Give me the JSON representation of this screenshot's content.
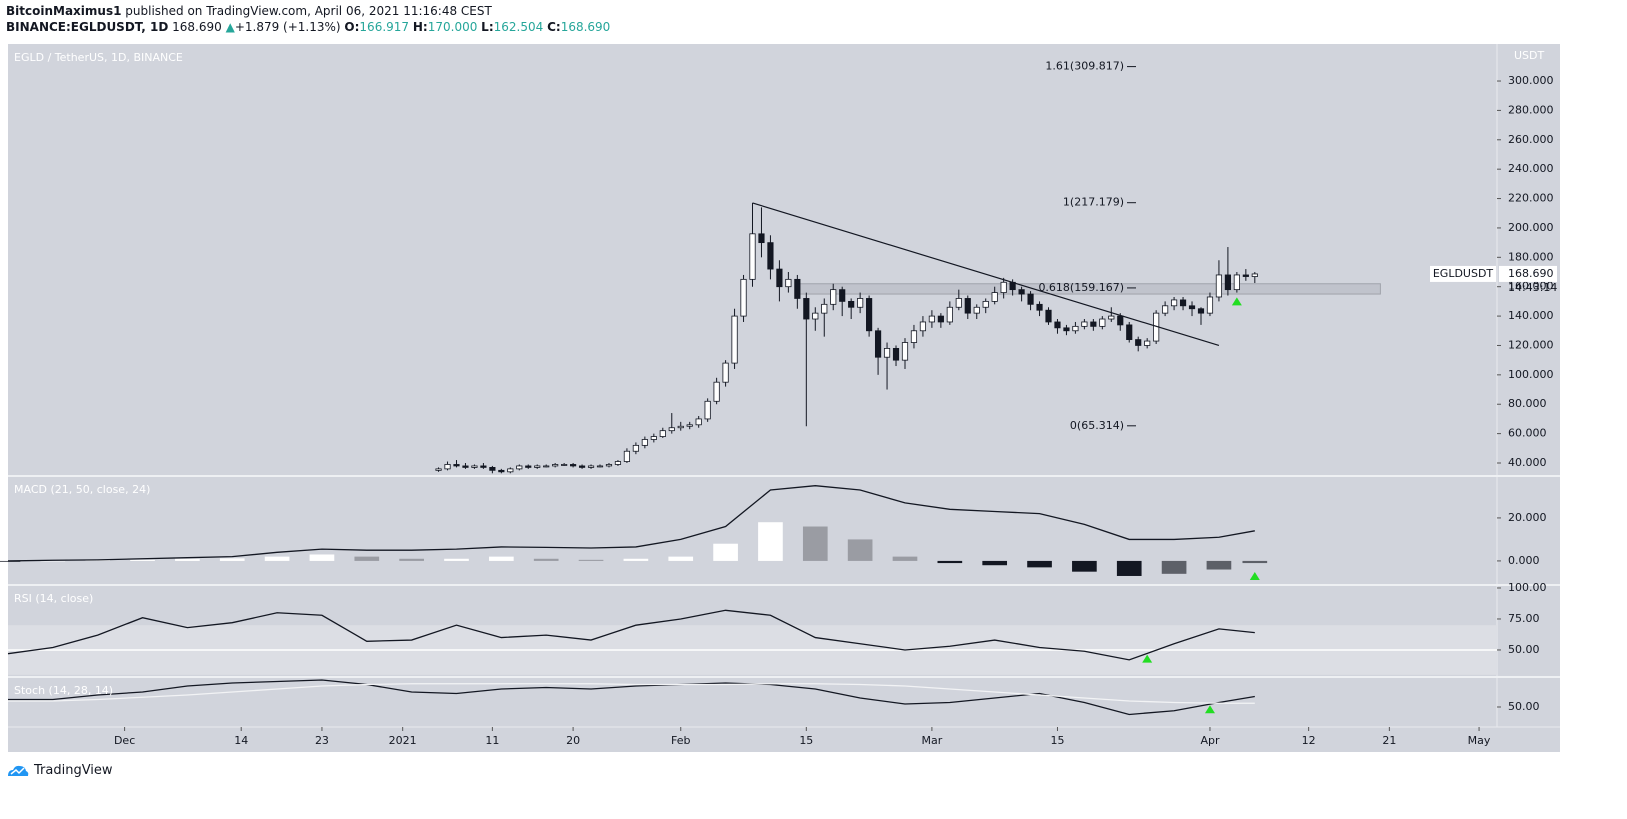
{
  "header": {
    "author": "BitcoinMaximus1",
    "published": "published on TradingView.com, April 06, 2021 11:16:48 CEST",
    "symbol": "BINANCE:EGLDUSDT, 1D",
    "last": "168.690",
    "arrow": "▲",
    "change": "+1.879 (+1.13%)",
    "o_label": "O:",
    "o": "166.917",
    "h_label": "H:",
    "h": "170.000",
    "l_label": "L:",
    "l": "162.504",
    "c_label": "C:",
    "c": "168.690"
  },
  "chart_data": [
    {
      "type": "candlestick",
      "title": "EGLD / TetherUS, 1D, BINANCE",
      "unit": "USDT",
      "symbol": "EGLDUSDT",
      "price_tag": {
        "value": 168.69,
        "label": "168.690"
      },
      "countdown": "14:43:14",
      "up_color": "#ffffff",
      "down_color": "#131722",
      "xlim": [
        "2020-11-18",
        "2021-05-03"
      ],
      "ylim": [
        31.15,
        325.2
      ],
      "yticks": [
        {
          "value": 40,
          "label": "40.000"
        },
        {
          "value": 60,
          "label": "60.000"
        },
        {
          "value": 80,
          "label": "80.000"
        },
        {
          "value": 100,
          "label": "100.000"
        },
        {
          "value": 120,
          "label": "120.000"
        },
        {
          "value": 140,
          "label": "140.000"
        },
        {
          "value": 160,
          "label": "160.000"
        },
        {
          "value": 180,
          "label": "180.000"
        },
        {
          "value": 200,
          "label": "200.000"
        },
        {
          "value": 220,
          "label": "220.000"
        },
        {
          "value": 240,
          "label": "240.000"
        },
        {
          "value": 260,
          "label": "260.000"
        },
        {
          "value": 280,
          "label": "280.000"
        },
        {
          "value": 300,
          "label": "300.000"
        }
      ],
      "x": [
        "2021-01-05",
        "2021-01-06",
        "2021-01-07",
        "2021-01-08",
        "2021-01-09",
        "2021-01-10",
        "2021-01-11",
        "2021-01-12",
        "2021-01-13",
        "2021-01-14",
        "2021-01-15",
        "2021-01-16",
        "2021-01-17",
        "2021-01-18",
        "2021-01-19",
        "2021-01-20",
        "2021-01-21",
        "2021-01-22",
        "2021-01-23",
        "2021-01-24",
        "2021-01-25",
        "2021-01-26",
        "2021-01-27",
        "2021-01-28",
        "2021-01-29",
        "2021-01-30",
        "2021-01-31",
        "2021-02-01",
        "2021-02-02",
        "2021-02-03",
        "2021-02-04",
        "2021-02-05",
        "2021-02-06",
        "2021-02-07",
        "2021-02-08",
        "2021-02-09",
        "2021-02-10",
        "2021-02-11",
        "2021-02-12",
        "2021-02-13",
        "2021-02-14",
        "2021-02-15",
        "2021-02-16",
        "2021-02-17",
        "2021-02-18",
        "2021-02-19",
        "2021-02-20",
        "2021-02-21",
        "2021-02-22",
        "2021-02-23",
        "2021-02-24",
        "2021-02-25",
        "2021-02-26",
        "2021-02-27",
        "2021-02-28",
        "2021-03-01",
        "2021-03-02",
        "2021-03-03",
        "2021-03-04",
        "2021-03-05",
        "2021-03-06",
        "2021-03-07",
        "2021-03-08",
        "2021-03-09",
        "2021-03-10",
        "2021-03-11",
        "2021-03-12",
        "2021-03-13",
        "2021-03-14",
        "2021-03-15",
        "2021-03-16",
        "2021-03-17",
        "2021-03-18",
        "2021-03-19",
        "2021-03-20",
        "2021-03-21",
        "2021-03-22",
        "2021-03-23",
        "2021-03-24",
        "2021-03-25",
        "2021-03-26",
        "2021-03-27",
        "2021-03-28",
        "2021-03-29",
        "2021-03-30",
        "2021-03-31",
        "2021-04-01",
        "2021-04-02",
        "2021-04-03",
        "2021-04-04",
        "2021-04-05",
        "2021-04-06"
      ],
      "values": [
        [
          35,
          37,
          34,
          36
        ],
        [
          36,
          41,
          35,
          39
        ],
        [
          39,
          42,
          37,
          38
        ],
        [
          38,
          40,
          36,
          37
        ],
        [
          37,
          39,
          36,
          38
        ],
        [
          38,
          40,
          36,
          37
        ],
        [
          37,
          38,
          33,
          35
        ],
        [
          35,
          36,
          33,
          34
        ],
        [
          34,
          37,
          33,
          36
        ],
        [
          36,
          39,
          35,
          38
        ],
        [
          38,
          39,
          36,
          37
        ],
        [
          37,
          39,
          36,
          38
        ],
        [
          38,
          39,
          37,
          38
        ],
        [
          38,
          40,
          37,
          39
        ],
        [
          39,
          40,
          38,
          39
        ],
        [
          39,
          40,
          37,
          38
        ],
        [
          38,
          39,
          36,
          37
        ],
        [
          37,
          39,
          36,
          38
        ],
        [
          38,
          39,
          37,
          38
        ],
        [
          38,
          40,
          37,
          39
        ],
        [
          39,
          42,
          38,
          41
        ],
        [
          41,
          50,
          40,
          48
        ],
        [
          48,
          54,
          46,
          52
        ],
        [
          52,
          58,
          50,
          56
        ],
        [
          56,
          60,
          54,
          58
        ],
        [
          58,
          64,
          57,
          62
        ],
        [
          62,
          74,
          60,
          64
        ],
        [
          64,
          68,
          62,
          65
        ],
        [
          65,
          68,
          63,
          66
        ],
        [
          66,
          72,
          64,
          70
        ],
        [
          70,
          84,
          68,
          82
        ],
        [
          82,
          98,
          80,
          95
        ],
        [
          95,
          110,
          92,
          108
        ],
        [
          108,
          145,
          104,
          140
        ],
        [
          140,
          168,
          136,
          165
        ],
        [
          165,
          217,
          160,
          196
        ],
        [
          196,
          214,
          180,
          190
        ],
        [
          190,
          195,
          165,
          172
        ],
        [
          172,
          178,
          150,
          160
        ],
        [
          160,
          170,
          156,
          165
        ],
        [
          165,
          168,
          145,
          152
        ],
        [
          152,
          156,
          65,
          138
        ],
        [
          138,
          146,
          130,
          142
        ],
        [
          142,
          152,
          126,
          148
        ],
        [
          148,
          162,
          144,
          158
        ],
        [
          158,
          160,
          140,
          150
        ],
        [
          150,
          152,
          138,
          146
        ],
        [
          146,
          156,
          142,
          152
        ],
        [
          152,
          154,
          126,
          130
        ],
        [
          130,
          132,
          100,
          112
        ],
        [
          112,
          122,
          90,
          118
        ],
        [
          118,
          120,
          106,
          110
        ],
        [
          110,
          125,
          104,
          122
        ],
        [
          122,
          134,
          118,
          130
        ],
        [
          130,
          140,
          126,
          136
        ],
        [
          136,
          144,
          132,
          140
        ],
        [
          140,
          142,
          132,
          136
        ],
        [
          136,
          150,
          134,
          146
        ],
        [
          146,
          158,
          144,
          152
        ],
        [
          152,
          154,
          138,
          142
        ],
        [
          142,
          148,
          138,
          146
        ],
        [
          146,
          152,
          142,
          150
        ],
        [
          150,
          160,
          148,
          156
        ],
        [
          156,
          166,
          152,
          163
        ],
        [
          163,
          165,
          154,
          158
        ],
        [
          158,
          160,
          150,
          155
        ],
        [
          155,
          157,
          144,
          148
        ],
        [
          148,
          150,
          140,
          144
        ],
        [
          144,
          146,
          134,
          136
        ],
        [
          136,
          138,
          128,
          132
        ],
        [
          132,
          134,
          127,
          130
        ],
        [
          130,
          136,
          128,
          133
        ],
        [
          133,
          138,
          131,
          136
        ],
        [
          136,
          138,
          130,
          133
        ],
        [
          133,
          140,
          131,
          138
        ],
        [
          138,
          146,
          136,
          140
        ],
        [
          140,
          142,
          130,
          134
        ],
        [
          134,
          136,
          122,
          124
        ],
        [
          124,
          126,
          116,
          120
        ],
        [
          120,
          125,
          118,
          123
        ],
        [
          123,
          144,
          121,
          142
        ],
        [
          142,
          150,
          140,
          147
        ],
        [
          147,
          153,
          144,
          151
        ],
        [
          151,
          153,
          144,
          147
        ],
        [
          147,
          150,
          140,
          145
        ],
        [
          145,
          146,
          134,
          142
        ],
        [
          142,
          156,
          140,
          153
        ],
        [
          153,
          178,
          150,
          168
        ],
        [
          168,
          187,
          154,
          158
        ],
        [
          158,
          170,
          156,
          168
        ],
        [
          168,
          172,
          164,
          166.917
        ],
        [
          166.917,
          170,
          162.504,
          168.69
        ]
      ],
      "fib_levels": [
        {
          "value": 309.817,
          "label": "1.61(309.817)"
        },
        {
          "value": 217.179,
          "label": "1(217.179)"
        },
        {
          "value": 159.167,
          "label": "0.618(159.167)"
        },
        {
          "value": 65.314,
          "label": "0(65.314)"
        }
      ],
      "trendline": {
        "x": [
          "2021-02-09",
          "2021-04-02"
        ],
        "y": [
          217,
          120
        ]
      },
      "zone": {
        "x": [
          "2021-02-14",
          "2021-04-20"
        ],
        "y": [
          155,
          162
        ]
      },
      "markers": [
        {
          "x": "2021-04-04",
          "y": 150
        }
      ],
      "marker_color": "#22dd22"
    },
    {
      "type": "macd",
      "title": "MACD (21, 50, close, 24)",
      "xlim": [
        "2020-11-18",
        "2021-05-03"
      ],
      "ylim": [
        -11.2,
        39.5
      ],
      "yticks": [
        {
          "value": 0,
          "label": "0.000"
        },
        {
          "value": 20,
          "label": "20.000"
        }
      ],
      "x": [
        "2020-11-18",
        "2020-11-23",
        "2020-11-28",
        "2020-12-03",
        "2020-12-08",
        "2020-12-13",
        "2020-12-18",
        "2020-12-23",
        "2020-12-28",
        "2021-01-02",
        "2021-01-07",
        "2021-01-12",
        "2021-01-17",
        "2021-01-22",
        "2021-01-27",
        "2021-02-01",
        "2021-02-06",
        "2021-02-11",
        "2021-02-16",
        "2021-02-21",
        "2021-02-26",
        "2021-03-03",
        "2021-03-08",
        "2021-03-13",
        "2021-03-18",
        "2021-03-23",
        "2021-03-28",
        "2021-04-02",
        "2021-04-06"
      ],
      "values": [
        0,
        0.3,
        0.5,
        1,
        1.5,
        2,
        4,
        5.5,
        5,
        5,
        5.5,
        6.5,
        6.3,
        6,
        6.5,
        10,
        16,
        33,
        35,
        33,
        27,
        24,
        23,
        22,
        17,
        10,
        10,
        11,
        14
      ],
      "histogram": [
        -0.5,
        0,
        0.3,
        0.5,
        1,
        1.2,
        2,
        3,
        2,
        1,
        1,
        2,
        1,
        0.5,
        1,
        2,
        8,
        18,
        16,
        10,
        2,
        -1,
        -2,
        -3,
        -5,
        -7,
        -6,
        -4,
        -1
      ],
      "color": "#131722",
      "markers": [
        {
          "x": "2021-04-06",
          "y": -7
        }
      ],
      "marker_color": "#22dd22"
    },
    {
      "type": "rsi",
      "title": "RSI (14, close)",
      "xlim": [
        "2020-11-18",
        "2021-05-03"
      ],
      "ylim": [
        28.2,
        102.4
      ],
      "yticks": [
        {
          "value": 50,
          "label": "50.00"
        },
        {
          "value": 75,
          "label": "75.00"
        },
        {
          "value": 100,
          "label": "100.00"
        }
      ],
      "band": [
        30,
        70
      ],
      "midline": 50,
      "x": [
        "2020-11-18",
        "2020-11-23",
        "2020-11-28",
        "2020-12-03",
        "2020-12-08",
        "2020-12-13",
        "2020-12-18",
        "2020-12-23",
        "2020-12-28",
        "2021-01-02",
        "2021-01-07",
        "2021-01-12",
        "2021-01-17",
        "2021-01-22",
        "2021-01-27",
        "2021-02-01",
        "2021-02-06",
        "2021-02-11",
        "2021-02-16",
        "2021-02-21",
        "2021-02-26",
        "2021-03-03",
        "2021-03-08",
        "2021-03-13",
        "2021-03-18",
        "2021-03-23",
        "2021-03-28",
        "2021-04-02",
        "2021-04-06"
      ],
      "values": [
        47,
        52,
        62,
        76,
        68,
        72,
        80,
        78,
        57,
        58,
        70,
        60,
        62,
        58,
        70,
        75,
        82,
        78,
        60,
        55,
        50,
        53,
        58,
        52,
        49,
        42,
        55,
        67,
        64
      ],
      "color": "#131722",
      "markers": [
        {
          "x": "2021-03-25",
          "y": 43
        }
      ],
      "marker_color": "#22dd22"
    },
    {
      "type": "stoch",
      "title": "Stoch (14, 28, 14)",
      "xlim": [
        "2020-11-18",
        "2021-05-03"
      ],
      "ylim": [
        23.3,
        90
      ],
      "yticks": [
        {
          "value": 50,
          "label": "50.00"
        }
      ],
      "xticks": [
        {
          "value": "2020-12-01",
          "label": "Dec"
        },
        {
          "value": "2020-12-14",
          "label": "14"
        },
        {
          "value": "2020-12-23",
          "label": "23"
        },
        {
          "value": "2021-01-01",
          "label": "2021"
        },
        {
          "value": "2021-01-11",
          "label": "11"
        },
        {
          "value": "2021-01-20",
          "label": "20"
        },
        {
          "value": "2021-02-01",
          "label": "Feb"
        },
        {
          "value": "2021-02-15",
          "label": "15"
        },
        {
          "value": "2021-03-01",
          "label": "Mar"
        },
        {
          "value": "2021-03-15",
          "label": "15"
        },
        {
          "value": "2021-04-01",
          "label": "Apr"
        },
        {
          "value": "2021-04-12",
          "label": "12"
        },
        {
          "value": "2021-04-21",
          "label": "21"
        },
        {
          "value": "2021-05-01",
          "label": "May"
        }
      ],
      "x": [
        "2020-11-18",
        "2020-11-23",
        "2020-11-28",
        "2020-12-03",
        "2020-12-08",
        "2020-12-13",
        "2020-12-18",
        "2020-12-23",
        "2020-12-28",
        "2021-01-02",
        "2021-01-07",
        "2021-01-12",
        "2021-01-17",
        "2021-01-22",
        "2021-01-27",
        "2021-02-01",
        "2021-02-06",
        "2021-02-11",
        "2021-02-16",
        "2021-02-21",
        "2021-02-26",
        "2021-03-03",
        "2021-03-08",
        "2021-03-13",
        "2021-03-18",
        "2021-03-23",
        "2021-03-28",
        "2021-04-02",
        "2021-04-06"
      ],
      "series": [
        {
          "color": "#131722",
          "values": [
            60,
            60,
            66,
            70,
            78,
            82,
            84,
            86,
            80,
            70,
            68,
            74,
            76,
            74,
            78,
            80,
            82,
            80,
            74,
            62,
            54,
            56,
            62,
            68,
            56,
            40,
            45,
            56,
            64
          ]
        },
        {
          "color": "#f2f3f5",
          "values": [
            58,
            58,
            60,
            63,
            66,
            70,
            74,
            78,
            80,
            81,
            81,
            81,
            81,
            81,
            80,
            80,
            80,
            81,
            81,
            80,
            78,
            74,
            70,
            66,
            62,
            58,
            56,
            55,
            55
          ]
        }
      ],
      "markers": [
        {
          "x": "2021-04-01",
          "y": 47
        }
      ],
      "marker_color": "#22dd22"
    }
  ],
  "footer": {
    "brand": "TradingView"
  }
}
